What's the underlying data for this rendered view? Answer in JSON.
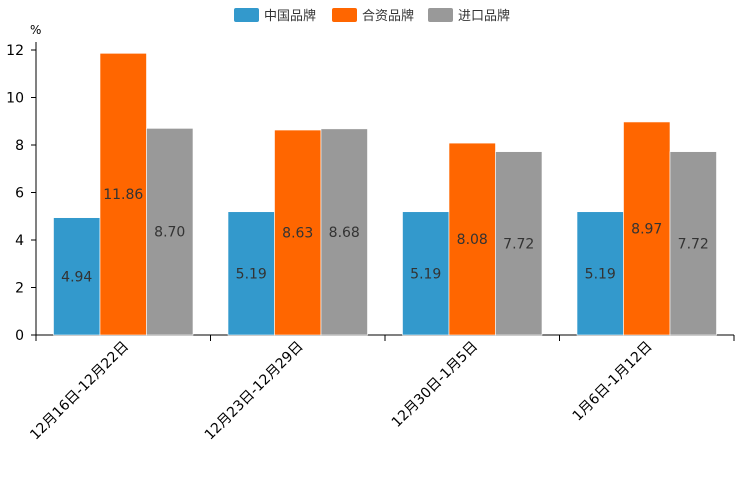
{
  "chart_data": {
    "type": "bar",
    "title": "",
    "xlabel": "",
    "ylabel": "%",
    "ylim": [
      0,
      12
    ],
    "yticks": [
      0,
      2,
      4,
      6,
      8,
      10,
      12
    ],
    "legend_position": "top-center",
    "grid": false,
    "categories": [
      "12月16日-12月22日",
      "12月23日-12月29日",
      "12月30日-1月5日",
      "1月6日-1月12日"
    ],
    "series": [
      {
        "name": "中国品牌",
        "color": "#3399CC",
        "values": [
          4.94,
          5.19,
          5.19,
          5.19
        ],
        "labels": [
          "4.94",
          "5.19",
          "5.19",
          "5.19"
        ]
      },
      {
        "name": "合资品牌",
        "color": "#FF6600",
        "values": [
          11.86,
          8.63,
          8.08,
          8.97
        ],
        "labels": [
          "11.86",
          "8.63",
          "8.08",
          "8.97"
        ]
      },
      {
        "name": "进口品牌",
        "color": "#999999",
        "values": [
          8.7,
          8.68,
          7.72,
          7.72
        ],
        "labels": [
          "8.70",
          "8.68",
          "7.72",
          "7.72"
        ]
      }
    ]
  }
}
